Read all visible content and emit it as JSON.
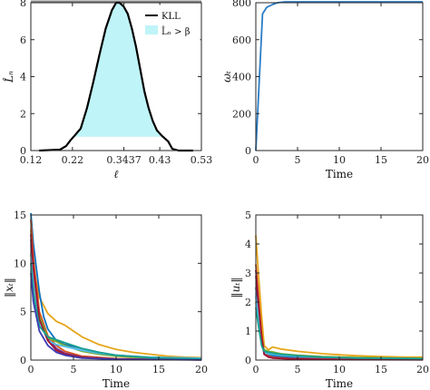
{
  "chart_data": [
    {
      "type": "area",
      "xlabel": "ℓ",
      "ylabel": "L̂ₙ",
      "xlim": [
        0.12,
        0.53
      ],
      "ylim": [
        0,
        8
      ],
      "xticks": [
        "0.12",
        "0.22",
        "0.3437",
        "0.43",
        "0.53"
      ],
      "xtick_values": [
        0.12,
        0.22,
        0.3437,
        0.43,
        0.53
      ],
      "yticks": [
        0,
        2,
        4,
        6,
        8
      ],
      "threshold_value": 0.75,
      "threshold_line_color": "#888888",
      "legend": {
        "placement": "top-right",
        "entries": [
          "KLL",
          "L̂ₙ > β"
        ]
      },
      "series": [
        {
          "name": "KLL",
          "color": "#000000",
          "fill": "#bff4f8",
          "x": [
            0.14,
            0.19,
            0.205,
            0.215,
            0.225,
            0.24,
            0.255,
            0.27,
            0.285,
            0.3,
            0.315,
            0.325,
            0.333,
            0.343,
            0.353,
            0.363,
            0.373,
            0.383,
            0.393,
            0.403,
            0.413,
            0.423,
            0.435,
            0.45,
            0.46,
            0.475,
            0.51
          ],
          "y": [
            0.0,
            0.05,
            0.25,
            0.55,
            0.8,
            1.2,
            2.3,
            3.7,
            5.2,
            6.6,
            7.6,
            8.0,
            8.0,
            7.8,
            7.4,
            6.6,
            5.6,
            4.4,
            3.2,
            2.3,
            1.6,
            1.1,
            0.8,
            0.5,
            0.1,
            0.0,
            0.0
          ]
        }
      ]
    },
    {
      "type": "line",
      "xlabel": "Time",
      "ylabel": "ωₜ",
      "xlim": [
        0,
        20
      ],
      "ylim": [
        0,
        800
      ],
      "xticks": [
        0,
        5,
        10,
        15,
        20
      ],
      "yticks": [
        0,
        200,
        400,
        600,
        800
      ],
      "series": [
        {
          "color": "#2b7cc4",
          "x": [
            0,
            0.8,
            1.3,
            2.0,
            2.6,
            3.5,
            20
          ],
          "y": [
            0,
            740,
            775,
            790,
            800,
            805,
            805
          ]
        }
      ]
    },
    {
      "type": "line",
      "xlabel": "Time",
      "ylabel": "‖xₜ‖",
      "xlim": [
        0,
        20
      ],
      "ylim": [
        0,
        15
      ],
      "xticks": [
        0,
        5,
        10,
        15,
        20
      ],
      "yticks": [
        0,
        5,
        10,
        15
      ],
      "series": [
        {
          "color": "#e6a519",
          "x": [
            0,
            0.3,
            1,
            2,
            3,
            4,
            6,
            8,
            10,
            12,
            14,
            16,
            18,
            20
          ],
          "y": [
            13.5,
            9.5,
            6.5,
            4.8,
            4.0,
            3.6,
            2.4,
            1.6,
            1.1,
            0.8,
            0.6,
            0.4,
            0.3,
            0.25
          ]
        },
        {
          "color": "#0b72bd",
          "x": [
            0,
            0.3,
            1,
            1.5,
            2,
            3,
            4,
            6,
            8,
            10,
            14,
            20
          ],
          "y": [
            15.2,
            12,
            7,
            4.5,
            3.2,
            2.0,
            1.6,
            1.2,
            0.8,
            0.5,
            0.25,
            0.1
          ]
        },
        {
          "color": "#d95319",
          "x": [
            0,
            0.3,
            1,
            2,
            3,
            4,
            6,
            10,
            20
          ],
          "y": [
            14.5,
            10.5,
            5,
            2.5,
            1.5,
            0.9,
            0.4,
            0.15,
            0.05
          ]
        },
        {
          "color": "#7e2f8e",
          "x": [
            0,
            0.3,
            1,
            2,
            3,
            4,
            6,
            10,
            20
          ],
          "y": [
            12.5,
            9,
            4.5,
            2.2,
            1.2,
            0.7,
            0.3,
            0.1,
            0.03
          ]
        },
        {
          "color": "#77ac30",
          "x": [
            0,
            0.3,
            1,
            2,
            3,
            4,
            6,
            8,
            10,
            14,
            20
          ],
          "y": [
            11,
            8,
            4.5,
            2.3,
            1.9,
            1.5,
            0.9,
            0.6,
            0.4,
            0.2,
            0.1
          ]
        },
        {
          "color": "#4dbeee",
          "x": [
            0,
            0.3,
            1,
            2,
            3,
            4,
            6,
            8,
            10,
            14,
            20
          ],
          "y": [
            12,
            8.5,
            4.0,
            2.0,
            1.6,
            1.4,
            1.0,
            0.7,
            0.5,
            0.3,
            0.2
          ]
        },
        {
          "color": "#a2142f",
          "x": [
            0,
            0.3,
            1,
            2,
            3,
            4,
            6,
            10,
            20
          ],
          "y": [
            13,
            9.5,
            4.2,
            2.0,
            1.0,
            0.6,
            0.25,
            0.1,
            0.03
          ]
        },
        {
          "color": "#1a9e8f",
          "x": [
            0,
            0.3,
            1,
            2,
            3,
            4,
            6,
            8,
            10,
            14,
            20
          ],
          "y": [
            10,
            7,
            3.5,
            2.4,
            2.1,
            1.8,
            1.2,
            0.8,
            0.5,
            0.25,
            0.1
          ]
        },
        {
          "color": "#3c3cb4",
          "x": [
            0,
            0.3,
            1,
            2,
            3,
            4,
            6,
            10,
            20
          ],
          "y": [
            9,
            6,
            3,
            1.5,
            0.8,
            0.5,
            0.2,
            0.08,
            0.02
          ]
        }
      ]
    },
    {
      "type": "line",
      "xlabel": "Time",
      "ylabel": "‖uₜ‖",
      "xlim": [
        0,
        20
      ],
      "ylim": [
        0,
        5
      ],
      "xticks": [
        0,
        5,
        10,
        15,
        20
      ],
      "yticks": [
        0,
        1,
        2,
        3,
        4,
        5
      ],
      "series": [
        {
          "color": "#e6a519",
          "x": [
            0,
            0.3,
            0.7,
            1,
            1.5,
            2,
            3,
            5,
            8,
            10,
            12,
            15,
            18,
            20
          ],
          "y": [
            4.3,
            3.0,
            1.5,
            0.5,
            0.35,
            0.45,
            0.38,
            0.3,
            0.22,
            0.18,
            0.15,
            0.12,
            0.1,
            0.1
          ]
        },
        {
          "color": "#0b72bd",
          "x": [
            0,
            0.3,
            0.7,
            1,
            1.5,
            2,
            4,
            8,
            12,
            20
          ],
          "y": [
            2.5,
            1.8,
            0.8,
            0.3,
            0.2,
            0.15,
            0.1,
            0.07,
            0.05,
            0.04
          ]
        },
        {
          "color": "#d95319",
          "x": [
            0,
            0.3,
            0.7,
            1,
            1.5,
            2,
            4,
            8,
            20
          ],
          "y": [
            3.3,
            2.2,
            0.9,
            0.25,
            0.15,
            0.1,
            0.06,
            0.04,
            0.02
          ]
        },
        {
          "color": "#7e2f8e",
          "x": [
            0,
            0.3,
            0.7,
            1,
            1.5,
            2,
            4,
            8,
            20
          ],
          "y": [
            2.9,
            1.9,
            0.7,
            0.2,
            0.12,
            0.08,
            0.05,
            0.03,
            0.02
          ]
        },
        {
          "color": "#77ac30",
          "x": [
            0,
            0.3,
            0.7,
            1,
            1.5,
            2,
            3,
            5,
            8,
            12,
            20
          ],
          "y": [
            2.0,
            1.5,
            0.6,
            0.35,
            0.3,
            0.28,
            0.22,
            0.17,
            0.12,
            0.09,
            0.06
          ]
        },
        {
          "color": "#4dbeee",
          "x": [
            0,
            0.3,
            0.7,
            1,
            1.5,
            2,
            3,
            5,
            8,
            12,
            20
          ],
          "y": [
            2.2,
            1.4,
            0.5,
            0.25,
            0.22,
            0.2,
            0.17,
            0.13,
            0.1,
            0.07,
            0.05
          ]
        },
        {
          "color": "#a2142f",
          "x": [
            0,
            0.3,
            0.7,
            1,
            1.5,
            2,
            4,
            8,
            20
          ],
          "y": [
            3.1,
            2.0,
            0.8,
            0.2,
            0.1,
            0.07,
            0.04,
            0.02,
            0.01
          ]
        },
        {
          "color": "#1a9e8f",
          "x": [
            0,
            0.3,
            0.7,
            1,
            1.5,
            2,
            3,
            5,
            8,
            12,
            20
          ],
          "y": [
            1.8,
            1.2,
            0.5,
            0.3,
            0.27,
            0.24,
            0.2,
            0.15,
            0.1,
            0.07,
            0.05
          ]
        }
      ]
    }
  ]
}
